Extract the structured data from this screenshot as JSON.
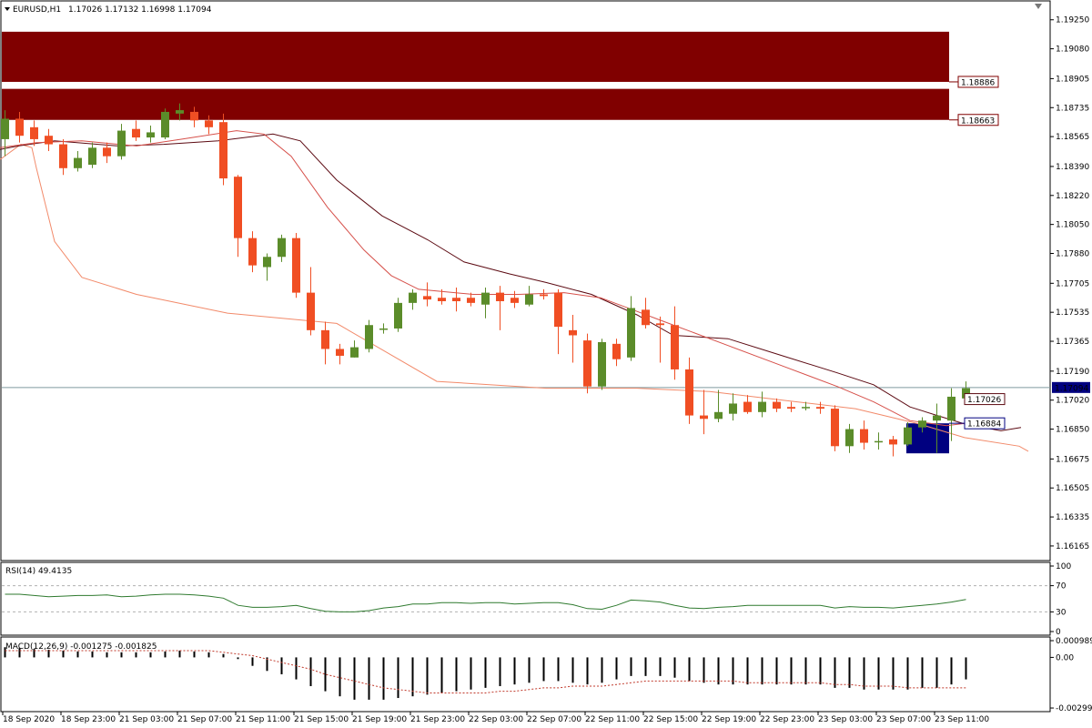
{
  "header": {
    "symbol_label": "EURUSD,H1",
    "ohlc": "1.17026 1.17132 1.16998 1.17094"
  },
  "colors": {
    "bull": "#5b8c2a",
    "bear": "#f04e23",
    "zone": "#800000",
    "ma_slow": "#f28a6a",
    "ma_mid": "#5c0a12",
    "ma_fast": "#d6504a",
    "current_line": "#7f9a9f",
    "support_zone": "#000080",
    "rsi_line": "#2f7a2f",
    "macd_hist": "#000000",
    "macd_signal": "#c0392b"
  },
  "chart_data": [
    {
      "type": "candlestick",
      "title": "EURUSD,H1",
      "ylim": [
        1.1609,
        1.1935
      ],
      "y_ticks": [
        "1.19250",
        "1.19080",
        "1.18905",
        "1.18735",
        "1.18565",
        "1.18390",
        "1.18220",
        "1.18050",
        "1.17880",
        "1.17705",
        "1.17535",
        "1.17365",
        "1.17190",
        "1.17020",
        "1.16850",
        "1.16675",
        "1.16505",
        "1.16335",
        "1.16165"
      ],
      "x_ticks": [
        "18 Sep 2020",
        "18 Sep 23:00",
        "21 Sep 03:00",
        "21 Sep 07:00",
        "21 Sep 11:00",
        "21 Sep 15:00",
        "21 Sep 19:00",
        "21 Sep 23:00",
        "22 Sep 03:00",
        "22 Sep 07:00",
        "22 Sep 11:00",
        "22 Sep 15:00",
        "22 Sep 19:00",
        "22 Sep 23:00",
        "23 Sep 03:00",
        "23 Sep 07:00",
        "23 Sep 11:00"
      ],
      "current_price": "1.17094",
      "resistance_zones": [
        {
          "upper": 1.1918,
          "lower": 1.18886,
          "label": "1.18886"
        },
        {
          "upper": 1.18845,
          "lower": 1.18663,
          "label": "1.18663"
        }
      ],
      "support_zone": {
        "upper": 1.16884,
        "lower": 1.16708,
        "label": "1.16884"
      },
      "ma_label": "1.17026",
      "candles": [
        {
          "o": 1.1855,
          "h": 1.1872,
          "l": 1.1845,
          "c": 1.1867
        },
        {
          "o": 1.1867,
          "h": 1.1871,
          "l": 1.1853,
          "c": 1.1857
        },
        {
          "o": 1.1862,
          "h": 1.1866,
          "l": 1.1851,
          "c": 1.1855
        },
        {
          "o": 1.1857,
          "h": 1.1861,
          "l": 1.1848,
          "c": 1.1852
        },
        {
          "o": 1.1852,
          "h": 1.1855,
          "l": 1.1834,
          "c": 1.1838
        },
        {
          "o": 1.1838,
          "h": 1.1848,
          "l": 1.1836,
          "c": 1.1844
        },
        {
          "o": 1.184,
          "h": 1.1853,
          "l": 1.1838,
          "c": 1.185
        },
        {
          "o": 1.185,
          "h": 1.1853,
          "l": 1.1841,
          "c": 1.1845
        },
        {
          "o": 1.1845,
          "h": 1.1864,
          "l": 1.1843,
          "c": 1.186
        },
        {
          "o": 1.1861,
          "h": 1.1866,
          "l": 1.1854,
          "c": 1.1856
        },
        {
          "o": 1.1856,
          "h": 1.1863,
          "l": 1.1853,
          "c": 1.1859
        },
        {
          "o": 1.1856,
          "h": 1.1873,
          "l": 1.1855,
          "c": 1.1871
        },
        {
          "o": 1.187,
          "h": 1.1876,
          "l": 1.1866,
          "c": 1.1872
        },
        {
          "o": 1.1871,
          "h": 1.1874,
          "l": 1.1862,
          "c": 1.1866
        },
        {
          "o": 1.1866,
          "h": 1.1869,
          "l": 1.1858,
          "c": 1.1862
        },
        {
          "o": 1.1865,
          "h": 1.187,
          "l": 1.1828,
          "c": 1.1832
        },
        {
          "o": 1.1833,
          "h": 1.1834,
          "l": 1.1786,
          "c": 1.1797
        },
        {
          "o": 1.1797,
          "h": 1.1801,
          "l": 1.1777,
          "c": 1.1781
        },
        {
          "o": 1.178,
          "h": 1.1788,
          "l": 1.1772,
          "c": 1.1786
        },
        {
          "o": 1.1786,
          "h": 1.1799,
          "l": 1.1783,
          "c": 1.1797
        },
        {
          "o": 1.1797,
          "h": 1.18,
          "l": 1.1762,
          "c": 1.1765
        },
        {
          "o": 1.1765,
          "h": 1.178,
          "l": 1.174,
          "c": 1.1743
        },
        {
          "o": 1.1743,
          "h": 1.1748,
          "l": 1.1723,
          "c": 1.1732
        },
        {
          "o": 1.1732,
          "h": 1.1735,
          "l": 1.1723,
          "c": 1.1728
        },
        {
          "o": 1.1727,
          "h": 1.1737,
          "l": 1.1727,
          "c": 1.1733
        },
        {
          "o": 1.1732,
          "h": 1.1749,
          "l": 1.173,
          "c": 1.1746
        },
        {
          "o": 1.1744,
          "h": 1.1747,
          "l": 1.1741,
          "c": 1.1744
        },
        {
          "o": 1.1744,
          "h": 1.1762,
          "l": 1.1742,
          "c": 1.1759
        },
        {
          "o": 1.1759,
          "h": 1.1767,
          "l": 1.1755,
          "c": 1.1765
        },
        {
          "o": 1.1763,
          "h": 1.1771,
          "l": 1.1757,
          "c": 1.1761
        },
        {
          "o": 1.1762,
          "h": 1.1767,
          "l": 1.1758,
          "c": 1.176
        },
        {
          "o": 1.1762,
          "h": 1.1768,
          "l": 1.1754,
          "c": 1.176
        },
        {
          "o": 1.1762,
          "h": 1.1765,
          "l": 1.1757,
          "c": 1.1759
        },
        {
          "o": 1.1758,
          "h": 1.1768,
          "l": 1.175,
          "c": 1.1765
        },
        {
          "o": 1.1765,
          "h": 1.1769,
          "l": 1.1743,
          "c": 1.176
        },
        {
          "o": 1.1762,
          "h": 1.1766,
          "l": 1.1756,
          "c": 1.1759
        },
        {
          "o": 1.1758,
          "h": 1.1769,
          "l": 1.1757,
          "c": 1.1764
        },
        {
          "o": 1.1764,
          "h": 1.1767,
          "l": 1.1761,
          "c": 1.1763
        },
        {
          "o": 1.1765,
          "h": 1.1767,
          "l": 1.1729,
          "c": 1.1745
        },
        {
          "o": 1.1743,
          "h": 1.1752,
          "l": 1.1724,
          "c": 1.174
        },
        {
          "o": 1.1737,
          "h": 1.1741,
          "l": 1.1706,
          "c": 1.171
        },
        {
          "o": 1.171,
          "h": 1.1738,
          "l": 1.1708,
          "c": 1.1736
        },
        {
          "o": 1.1735,
          "h": 1.1738,
          "l": 1.1722,
          "c": 1.1726
        },
        {
          "o": 1.1727,
          "h": 1.1763,
          "l": 1.1725,
          "c": 1.1756
        },
        {
          "o": 1.1755,
          "h": 1.1762,
          "l": 1.1744,
          "c": 1.1746
        },
        {
          "o": 1.1747,
          "h": 1.1751,
          "l": 1.1724,
          "c": 1.1746
        },
        {
          "o": 1.1746,
          "h": 1.1757,
          "l": 1.1714,
          "c": 1.172
        },
        {
          "o": 1.172,
          "h": 1.1727,
          "l": 1.1688,
          "c": 1.1693
        },
        {
          "o": 1.1693,
          "h": 1.1708,
          "l": 1.1682,
          "c": 1.1691
        },
        {
          "o": 1.1691,
          "h": 1.1708,
          "l": 1.1689,
          "c": 1.1695
        },
        {
          "o": 1.1694,
          "h": 1.1706,
          "l": 1.169,
          "c": 1.17
        },
        {
          "o": 1.1701,
          "h": 1.1705,
          "l": 1.1694,
          "c": 1.1695
        },
        {
          "o": 1.1695,
          "h": 1.1707,
          "l": 1.1692,
          "c": 1.1701
        },
        {
          "o": 1.1701,
          "h": 1.1703,
          "l": 1.1695,
          "c": 1.1697
        },
        {
          "o": 1.1698,
          "h": 1.1701,
          "l": 1.1695,
          "c": 1.1697
        },
        {
          "o": 1.1698,
          "h": 1.1701,
          "l": 1.1696,
          "c": 1.1698
        },
        {
          "o": 1.1698,
          "h": 1.1701,
          "l": 1.1694,
          "c": 1.1697
        },
        {
          "o": 1.1697,
          "h": 1.1699,
          "l": 1.1672,
          "c": 1.1675
        },
        {
          "o": 1.1675,
          "h": 1.1688,
          "l": 1.1671,
          "c": 1.1685
        },
        {
          "o": 1.1685,
          "h": 1.169,
          "l": 1.1673,
          "c": 1.1677
        },
        {
          "o": 1.1678,
          "h": 1.1683,
          "l": 1.1673,
          "c": 1.1678
        },
        {
          "o": 1.1679,
          "h": 1.1681,
          "l": 1.1669,
          "c": 1.1676
        },
        {
          "o": 1.1676,
          "h": 1.1689,
          "l": 1.1675,
          "c": 1.1686
        },
        {
          "o": 1.1686,
          "h": 1.1692,
          "l": 1.1683,
          "c": 1.169
        },
        {
          "o": 1.169,
          "h": 1.17,
          "l": 1.1671,
          "c": 1.1693
        },
        {
          "o": 1.169,
          "h": 1.1709,
          "l": 1.1678,
          "c": 1.1704
        },
        {
          "o": 1.1703,
          "h": 1.1713,
          "l": 1.17,
          "c": 1.1709
        }
      ],
      "ma_slow": [
        [
          0,
          1.1843
        ],
        [
          23,
          1.1852
        ],
        [
          35,
          1.185
        ],
        [
          40,
          1.1838
        ],
        [
          60,
          1.1795
        ],
        [
          90,
          1.1774
        ],
        [
          150,
          1.1764
        ],
        [
          250,
          1.1753
        ],
        [
          370,
          1.1747
        ],
        [
          480,
          1.1713
        ],
        [
          600,
          1.1709
        ],
        [
          700,
          1.1709
        ],
        [
          780,
          1.1707
        ],
        [
          860,
          1.1702
        ],
        [
          940,
          1.1697
        ],
        [
          1010,
          1.1688
        ],
        [
          1060,
          1.168
        ],
        [
          1120,
          1.1675
        ],
        [
          1130,
          1.1672
        ]
      ],
      "ma_mid_px": [
        [
          0,
          1.1849
        ],
        [
          20,
          1.1851
        ],
        [
          60,
          1.1854
        ],
        [
          130,
          1.1851
        ],
        [
          180,
          1.1852
        ],
        [
          240,
          1.1854
        ],
        [
          300,
          1.1858
        ],
        [
          330,
          1.1854
        ],
        [
          370,
          1.1831
        ],
        [
          420,
          1.181
        ],
        [
          470,
          1.1796
        ],
        [
          510,
          1.1783
        ],
        [
          560,
          1.1776
        ],
        [
          600,
          1.1771
        ],
        [
          650,
          1.1764
        ],
        [
          700,
          1.1752
        ],
        [
          740,
          1.174
        ],
        [
          800,
          1.1738
        ],
        [
          860,
          1.1728
        ],
        [
          920,
          1.1718
        ],
        [
          960,
          1.1711
        ],
        [
          1000,
          1.1698
        ],
        [
          1030,
          1.1693
        ],
        [
          1060,
          1.1688
        ],
        [
          1100,
          1.1684
        ],
        [
          1122,
          1.1686
        ]
      ],
      "ma_fast_px": [
        [
          0,
          1.185
        ],
        [
          40,
          1.1853
        ],
        [
          90,
          1.1854
        ],
        [
          150,
          1.1851
        ],
        [
          200,
          1.1855
        ],
        [
          260,
          1.186
        ],
        [
          290,
          1.1858
        ],
        [
          320,
          1.1845
        ],
        [
          360,
          1.1815
        ],
        [
          400,
          1.179
        ],
        [
          430,
          1.1775
        ],
        [
          460,
          1.1767
        ],
        [
          520,
          1.1764
        ],
        [
          570,
          1.1764
        ],
        [
          620,
          1.1765
        ],
        [
          660,
          1.1762
        ],
        [
          700,
          1.1754
        ],
        [
          730,
          1.1748
        ],
        [
          760,
          1.1742
        ],
        [
          800,
          1.1734
        ],
        [
          860,
          1.1722
        ],
        [
          920,
          1.171
        ],
        [
          960,
          1.1701
        ],
        [
          1000,
          1.169
        ],
        [
          1040,
          1.1687
        ],
        [
          1070,
          1.1689
        ]
      ]
    },
    {
      "type": "line",
      "title": "RSI(14) 49.4135",
      "ylim": [
        0,
        100
      ],
      "y_ticks": [
        "100",
        "70",
        "30",
        "0"
      ],
      "levels": [
        70,
        30
      ],
      "values": [
        57,
        57,
        55,
        53,
        54,
        55,
        55,
        56,
        53,
        54,
        56,
        57,
        57,
        56,
        54,
        51,
        40,
        37,
        37,
        38,
        40,
        35,
        31,
        30,
        30,
        32,
        36,
        38,
        42,
        42,
        44,
        44,
        43,
        44,
        44,
        42,
        43,
        44,
        44,
        41,
        35,
        34,
        40,
        48,
        47,
        45,
        40,
        36,
        35,
        37,
        38,
        40,
        40,
        40,
        40,
        40,
        40,
        36,
        38,
        37,
        37,
        36,
        38,
        40,
        42,
        45,
        49
      ]
    },
    {
      "type": "bar",
      "title": "MACD(12,26,9) -0.001275 -0.001825",
      "ylim": [
        -0.00299,
        0.00099
      ],
      "y_ticks": [
        "0.000989",
        "0.00",
        "-0.002992"
      ],
      "values": [
        0.0006,
        0.00055,
        0.0005,
        0.00045,
        0.0004,
        0.00035,
        0.00035,
        0.0003,
        0.0003,
        0.0003,
        0.0003,
        0.00035,
        0.0004,
        0.00035,
        0.0003,
        0.0002,
        -0.0001,
        -0.0005,
        -0.0008,
        -0.001,
        -0.0013,
        -0.0017,
        -0.002,
        -0.0023,
        -0.0025,
        -0.0025,
        -0.0025,
        -0.0024,
        -0.0023,
        -0.0022,
        -0.0021,
        -0.002,
        -0.0019,
        -0.0018,
        -0.0017,
        -0.0016,
        -0.0015,
        -0.0014,
        -0.0014,
        -0.0015,
        -0.0016,
        -0.0015,
        -0.0013,
        -0.0011,
        -0.0011,
        -0.0011,
        -0.0012,
        -0.0014,
        -0.0015,
        -0.0016,
        -0.0016,
        -0.0016,
        -0.0016,
        -0.0016,
        -0.0016,
        -0.0016,
        -0.0016,
        -0.0018,
        -0.0018,
        -0.0019,
        -0.0019,
        -0.0019,
        -0.0019,
        -0.0018,
        -0.0018,
        -0.0016,
        -0.0013
      ],
      "signal": [
        0.0004,
        0.0004,
        0.0004,
        0.0004,
        0.0004,
        0.0004,
        0.0004,
        0.0004,
        0.0004,
        0.0004,
        0.0004,
        0.0004,
        0.0004,
        0.0004,
        0.0004,
        0.0003,
        0.0002,
        0.0001,
        -0.0001,
        -0.0003,
        -0.0005,
        -0.0007,
        -0.001,
        -0.0012,
        -0.0014,
        -0.0016,
        -0.0018,
        -0.0019,
        -0.002,
        -0.0021,
        -0.0021,
        -0.0021,
        -0.0021,
        -0.0021,
        -0.002,
        -0.002,
        -0.0019,
        -0.0018,
        -0.0018,
        -0.0017,
        -0.0017,
        -0.0017,
        -0.0016,
        -0.0015,
        -0.0014,
        -0.0014,
        -0.0014,
        -0.0014,
        -0.0014,
        -0.0014,
        -0.0014,
        -0.0015,
        -0.0015,
        -0.0015,
        -0.0015,
        -0.0015,
        -0.0015,
        -0.0016,
        -0.0016,
        -0.0017,
        -0.0017,
        -0.0017,
        -0.0018,
        -0.0018,
        -0.0018,
        -0.0018,
        -0.0018
      ]
    }
  ]
}
